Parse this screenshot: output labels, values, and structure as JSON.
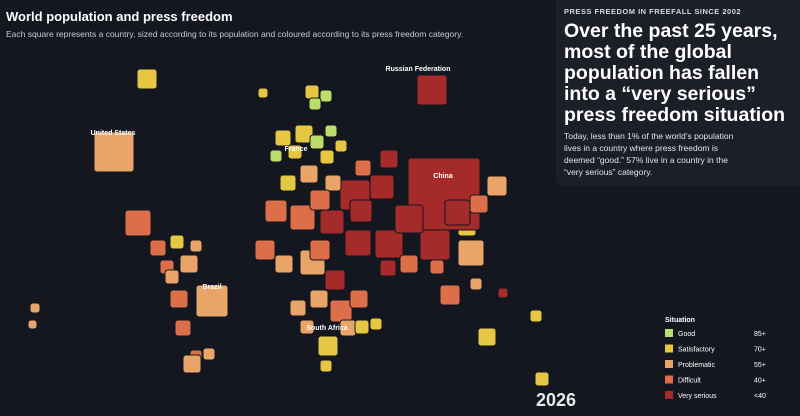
{
  "header": {
    "title": "World population and press freedom",
    "subtitle": "Each square represents a country, sized according to its population and coloured according to its press freedom category."
  },
  "map_labels": [
    "Russian Federation",
    "United States",
    "China",
    "Brazil",
    "South Africa",
    "France"
  ],
  "panel": {
    "kicker": "PRESS FREEDOM IN FREEFALL SINCE 2002",
    "headline": "Over the past 25 years, most of the global population has fallen into a “very serious” press freedom situation",
    "body": "Today, less than 1% of the world’s population lives in a country where press freedom is deemed “good.” 57% live in a country in the “very serious” category."
  },
  "legend": {
    "title": "Situation",
    "items": [
      {
        "label": "Good",
        "range": "85+",
        "color": "#bcdc6c"
      },
      {
        "label": "Satisfactory",
        "range": "70+",
        "color": "#e6c744"
      },
      {
        "label": "Problematic",
        "range": "55+",
        "color": "#e9a469"
      },
      {
        "label": "Difficult",
        "range": "40+",
        "color": "#dd6e4a"
      },
      {
        "label": "Very serious",
        "range": "<40",
        "color": "#a52a2a"
      }
    ]
  },
  "year": 2026
}
